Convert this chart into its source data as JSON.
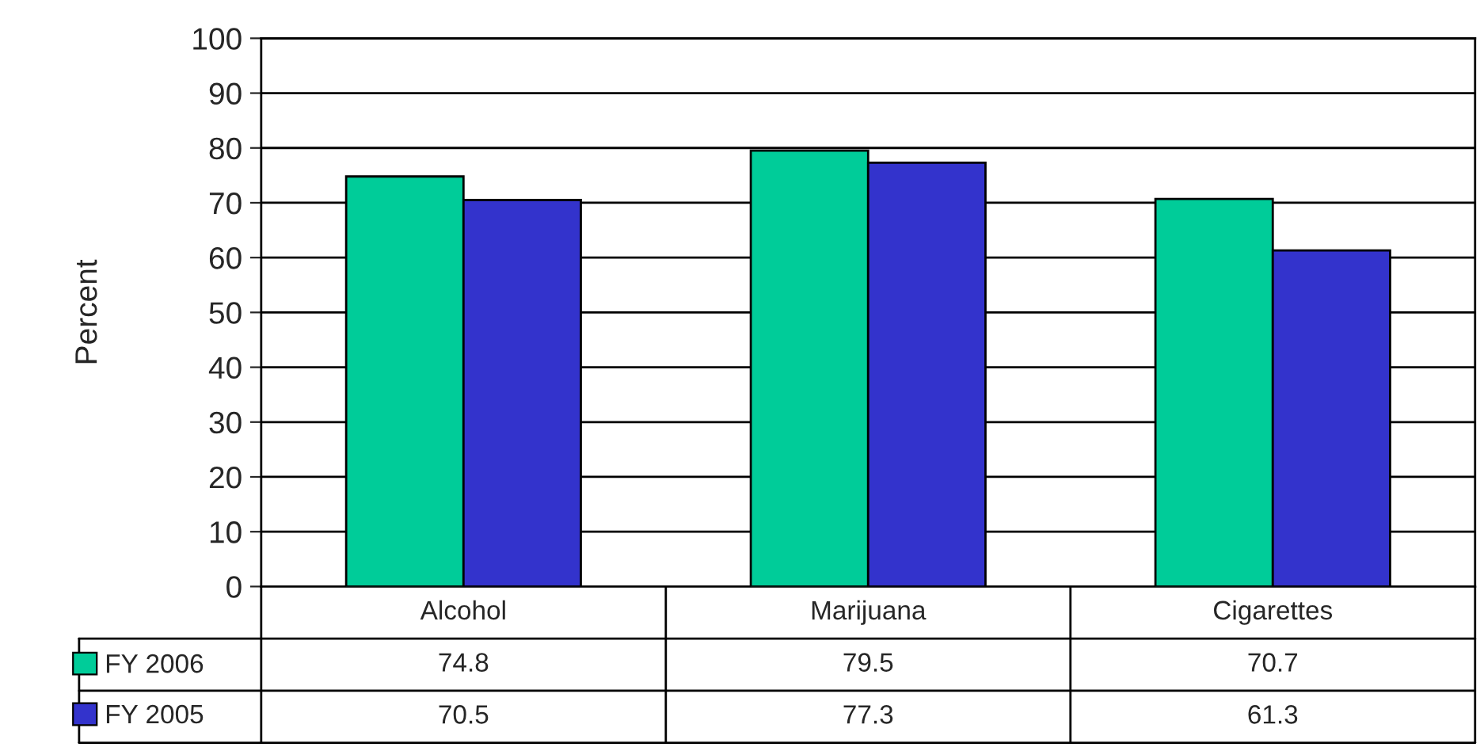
{
  "chart_data": {
    "type": "bar",
    "ylabel": "Percent",
    "categories": [
      "Alcohol",
      "Marijuana",
      "Cigarettes"
    ],
    "series": [
      {
        "name": "FY 2006",
        "color": "#00cc99",
        "values": [
          74.8,
          79.5,
          70.7
        ]
      },
      {
        "name": "FY 2005",
        "color": "#3333cc",
        "values": [
          70.5,
          77.3,
          61.3
        ]
      }
    ],
    "ylim": [
      0,
      100
    ],
    "yticks": [
      0,
      10,
      20,
      30,
      40,
      50,
      60,
      70,
      80,
      90,
      100
    ],
    "grid": "y",
    "legend": "bottom left",
    "data_labels": true
  }
}
